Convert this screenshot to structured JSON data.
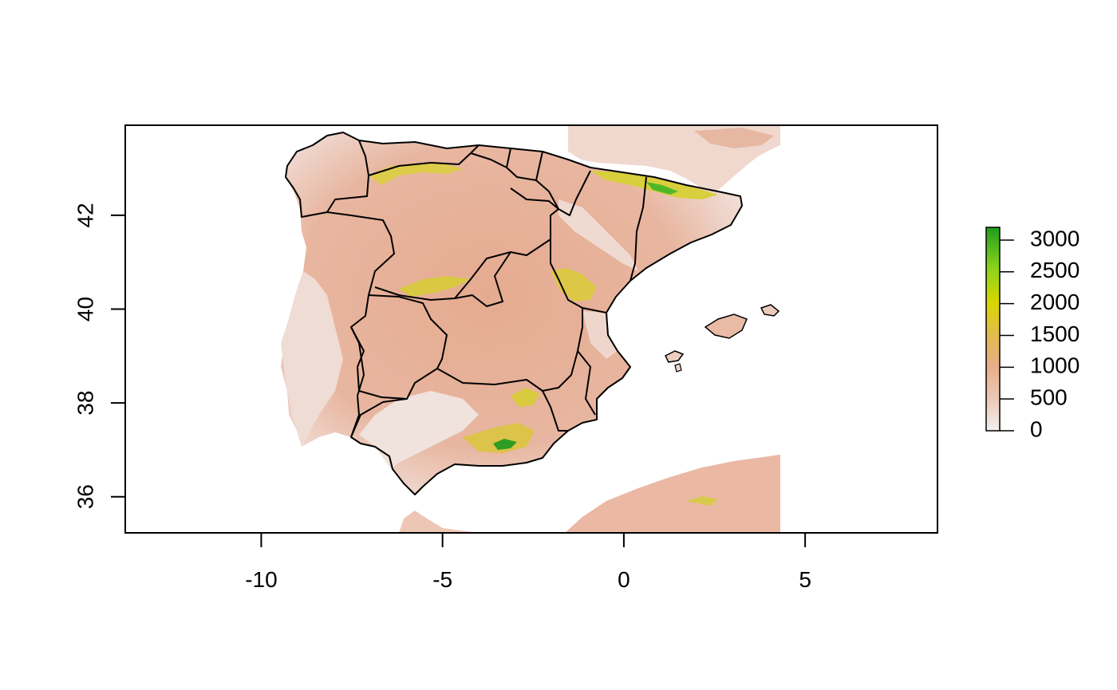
{
  "map": {
    "x_ticks": [
      "-10",
      "-5",
      "0",
      "5"
    ],
    "y_ticks": [
      "36",
      "38",
      "40",
      "42"
    ],
    "x_tick_values": [
      -10,
      -5,
      0,
      5
    ],
    "y_tick_values": [
      36,
      38,
      40,
      42
    ],
    "xlim": [
      -13.75,
      8.65
    ],
    "ylim": [
      35.23,
      43.92
    ],
    "colors": {
      "sea": "#ffffff",
      "lowland": "#f1e6e3",
      "plateau": "#e8b19a",
      "mountain": "#e2c248",
      "peak": "#1e9e1e",
      "border": "#000000"
    }
  },
  "legend": {
    "labels": [
      "3000",
      "2500",
      "2000",
      "1500",
      "1000",
      "500",
      "0"
    ],
    "values": [
      3000,
      2500,
      2000,
      1500,
      1000,
      500,
      0
    ],
    "range": [
      0,
      3200
    ],
    "colors": [
      "#f2f0f0",
      "#ecc7b5",
      "#e8ae87",
      "#e2bb4c",
      "#d9d700",
      "#8bd31a",
      "#1e9e1e"
    ]
  }
}
